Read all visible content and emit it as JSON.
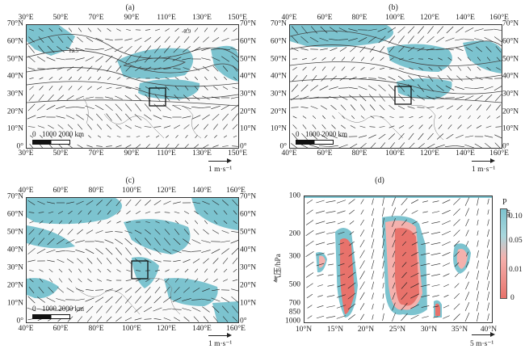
{
  "panels": [
    {
      "label": "(a)",
      "top_ticks": [
        "30°E",
        "50°E",
        "70°E",
        "90°E",
        "110°E",
        "130°E",
        "150°E"
      ],
      "bottom_ticks": [
        "30°E",
        "50°E",
        "70°E",
        "90°E",
        "110°E",
        "130°E",
        "150°E"
      ],
      "left_ticks": [
        "70°N",
        "60°N",
        "50°N",
        "40°N",
        "30°N",
        "20°N",
        "10°N",
        "0°"
      ],
      "right_ticks": [
        "70°N",
        "60°N",
        "50°N",
        "40°N",
        "30°N",
        "20°N",
        "10°N",
        "0°"
      ],
      "scale_text": "1000 2000 km",
      "scale_zero": "0",
      "unit": "1 m·s⁻¹",
      "contour_labels": [
        "-0.9",
        "12.5",
        "12.5"
      ]
    },
    {
      "label": "(b)",
      "top_ticks": [
        "40°E",
        "60°E",
        "80°E",
        "100°E",
        "120°E",
        "140°E",
        "160°E"
      ],
      "bottom_ticks": [
        "40°E",
        "60°E",
        "80°E",
        "100°E",
        "120°E",
        "140°E",
        "160°E"
      ],
      "left_ticks": [
        "70°N",
        "60°N",
        "50°N",
        "40°N",
        "30°N",
        "20°N",
        "10°N",
        "0°"
      ],
      "right_ticks": [
        "70°N",
        "60°N",
        "50°N",
        "40°N",
        "30°N",
        "20°N",
        "10°N",
        "0°"
      ],
      "scale_text": "1000 2000 km",
      "scale_zero": "0",
      "unit": "1 m·s⁻¹"
    },
    {
      "label": "(c)",
      "top_ticks": [
        "40°E",
        "60°E",
        "80°E",
        "100°E",
        "120°E",
        "140°E",
        "160°E"
      ],
      "bottom_ticks": [
        "40°E",
        "60°E",
        "80°E",
        "100°E",
        "120°E",
        "140°E",
        "160°E"
      ],
      "left_ticks": [
        "70°N",
        "60°N",
        "50°N",
        "40°N",
        "30°N",
        "20°N",
        "10°N",
        "0°"
      ],
      "right_ticks": [
        "70°N",
        "60°N",
        "50°N",
        "40°N",
        "30°N",
        "20°N",
        "10°N",
        "0°"
      ],
      "scale_text": "1000 2000 km",
      "scale_zero": "0",
      "unit": "1 m·s⁻¹"
    },
    {
      "label": "(d)",
      "bottom_ticks": [
        "10°N",
        "15°N",
        "20°N",
        "25°N",
        "30°N",
        "35°N",
        "40°N"
      ],
      "left_ticks": [
        "100",
        "200",
        "300",
        "500",
        "700",
        "850",
        "1000"
      ],
      "ylabel": "气压/hPa",
      "colorbar_title": "P值",
      "colorbar_ticks": [
        "0.10",
        "0.05",
        "0.01",
        "0"
      ],
      "unit": "5 m·s⁻¹"
    }
  ],
  "colors": {
    "sig_blue": "#7cc3cf",
    "sig_red": "#e8726b",
    "sig_pink": "#f4b1ad",
    "vector": "#222222"
  }
}
